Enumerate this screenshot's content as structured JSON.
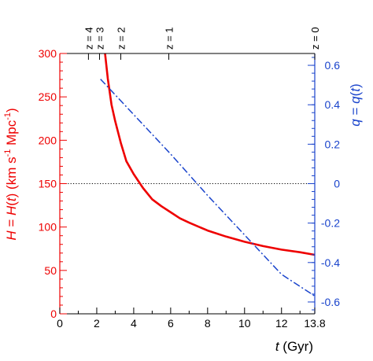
{
  "chart_data": {
    "type": "line",
    "xlabel_var": "t",
    "xlabel_unit": " (Gyr)",
    "x_ticks": [
      {
        "v": 0,
        "label": "0"
      },
      {
        "v": 2,
        "label": "2"
      },
      {
        "v": 4,
        "label": "4"
      },
      {
        "v": 6,
        "label": "6"
      },
      {
        "v": 8,
        "label": "8"
      },
      {
        "v": 10,
        "label": "10"
      },
      {
        "v": 12,
        "label": "12"
      },
      {
        "v": 13.8,
        "label": "13.8"
      }
    ],
    "xlim": [
      0,
      13.8
    ],
    "left_axis": {
      "label_parts": [
        "H",
        " = ",
        "H",
        "(",
        "t",
        ") (km s",
        "-1",
        " Mpc",
        "-1",
        ")"
      ],
      "ylim": [
        0,
        300
      ],
      "ticks": [
        0,
        50,
        100,
        150,
        200,
        250,
        300
      ],
      "color": "#ee0000"
    },
    "right_axis": {
      "label_parts": [
        "q",
        " = ",
        "q",
        "(",
        "t",
        ")"
      ],
      "ylim": [
        -0.66,
        0.66
      ],
      "ticks": [
        {
          "v": 0.6,
          "label": "0.6"
        },
        {
          "v": 0.4,
          "label": "0.4"
        },
        {
          "v": 0.2,
          "label": "0.2"
        },
        {
          "v": 0,
          "label": "0"
        },
        {
          "v": -0.2,
          "label": "-0.2"
        },
        {
          "v": -0.4,
          "label": "-0.4"
        },
        {
          "v": -0.6,
          "label": "-0.6"
        }
      ],
      "color": "#1a44cc"
    },
    "top_axis": {
      "labels": [
        {
          "t": 1.55,
          "label": "z = 4"
        },
        {
          "t": 2.15,
          "label": "z = 3"
        },
        {
          "t": 3.3,
          "label": "z = 2"
        },
        {
          "t": 5.9,
          "label": "z = 1"
        },
        {
          "t": 13.8,
          "label": "z = 0"
        }
      ]
    },
    "reference_line": {
      "axis": "right",
      "value": 0,
      "style": "dotted"
    },
    "series": [
      {
        "axis": "left",
        "style": "solid",
        "color": "#ee0000",
        "x": [
          2.45,
          2.6,
          2.8,
          3.0,
          3.3,
          3.6,
          4.0,
          4.5,
          5.0,
          5.5,
          6.0,
          6.5,
          7.0,
          8.0,
          9.0,
          10.0,
          11.0,
          12.0,
          13.0,
          13.8
        ],
        "y": [
          300,
          271,
          241,
          222,
          197,
          176,
          161,
          145,
          132,
          124,
          117,
          110,
          105,
          96,
          89,
          83,
          78,
          74,
          71,
          68
        ]
      },
      {
        "axis": "right",
        "style": "dashdot",
        "color": "#1a44cc",
        "x": [
          2.2,
          4.0,
          6.0,
          8.0,
          10.0,
          12.0,
          13.8
        ],
        "y": [
          0.53,
          0.35,
          0.15,
          -0.06,
          -0.26,
          -0.46,
          -0.57
        ]
      }
    ]
  }
}
